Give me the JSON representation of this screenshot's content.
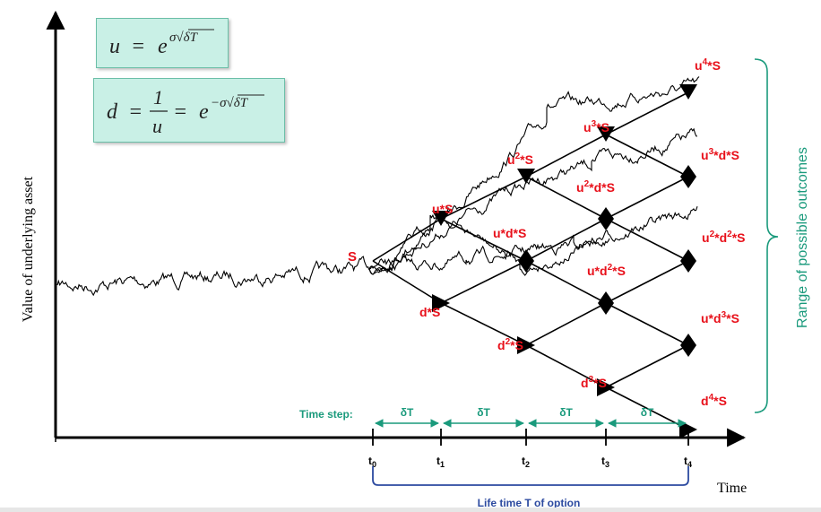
{
  "formulas": {
    "u_lhs": "u",
    "u_eq": "=",
    "u_rhs_base": "e",
    "u_rhs_exp": "σ√δT",
    "d_lhs": "d",
    "d_eq1": "=",
    "d_frac_num": "1",
    "d_frac_den": "u",
    "d_eq2": "=",
    "d_rhs_base": "e",
    "d_rhs_exp": "−σ√δT"
  },
  "axes": {
    "y_label": "Value of underlying asset",
    "x_label": "Time"
  },
  "time_ticks": [
    {
      "base": "t",
      "sub": "0"
    },
    {
      "base": "t",
      "sub": "1"
    },
    {
      "base": "t",
      "sub": "2"
    },
    {
      "base": "t",
      "sub": "3"
    },
    {
      "base": "t",
      "sub": "4"
    }
  ],
  "time_step": {
    "label": "Time step:",
    "interval": "δT"
  },
  "lifetime_label": "Life time T of option",
  "range_label": "Range of possible outcomes",
  "start_label": "S",
  "nodes": [
    {
      "name": "node-u-s",
      "parts": [
        [
          "u",
          ""
        ],
        [
          "*S",
          ""
        ]
      ]
    },
    {
      "name": "node-d-s",
      "parts": [
        [
          "d*S",
          ""
        ]
      ]
    },
    {
      "name": "node-u2-s",
      "parts": [
        [
          "u",
          ""
        ],
        [
          "2",
          "sup"
        ],
        [
          "*S",
          ""
        ]
      ]
    },
    {
      "name": "node-ud-s",
      "parts": [
        [
          "u*d*S",
          ""
        ]
      ]
    },
    {
      "name": "node-d2-s",
      "parts": [
        [
          "d",
          ""
        ],
        [
          "2",
          "sup"
        ],
        [
          "*S",
          ""
        ]
      ]
    },
    {
      "name": "node-u3-s",
      "parts": [
        [
          "u",
          ""
        ],
        [
          "3",
          "sup"
        ],
        [
          "*S",
          ""
        ]
      ]
    },
    {
      "name": "node-u2d-s",
      "parts": [
        [
          "u",
          ""
        ],
        [
          "2",
          "sup"
        ],
        [
          "*d*S",
          ""
        ]
      ]
    },
    {
      "name": "node-ud2-s",
      "parts": [
        [
          "u*d",
          ""
        ],
        [
          "2",
          "sup"
        ],
        [
          "*S",
          ""
        ]
      ]
    },
    {
      "name": "node-d3-s",
      "parts": [
        [
          "d",
          ""
        ],
        [
          "3",
          "sup"
        ],
        [
          "*S",
          ""
        ]
      ]
    },
    {
      "name": "node-u4-s",
      "parts": [
        [
          "u",
          ""
        ],
        [
          "4",
          "sup"
        ],
        [
          "*S",
          ""
        ]
      ]
    },
    {
      "name": "node-u3d-s",
      "parts": [
        [
          "u",
          ""
        ],
        [
          "3",
          "sup"
        ],
        [
          "*d*S",
          ""
        ]
      ]
    },
    {
      "name": "node-u2d2-s",
      "parts": [
        [
          "u",
          ""
        ],
        [
          "2",
          "sup"
        ],
        [
          "*d",
          ""
        ],
        [
          "2",
          "sup"
        ],
        [
          "*S",
          ""
        ]
      ]
    },
    {
      "name": "node-ud3-s",
      "parts": [
        [
          "u*d",
          ""
        ],
        [
          "3",
          "sup"
        ],
        [
          "*S",
          ""
        ]
      ]
    },
    {
      "name": "node-d4-s",
      "parts": [
        [
          "d",
          ""
        ],
        [
          "4",
          "sup"
        ],
        [
          "*S",
          ""
        ]
      ]
    }
  ],
  "colors": {
    "node_label": "#e8101a",
    "teal": "#1a9a7c",
    "lifetime": "#2c4aa0",
    "formula_bg": "#c9f0e6",
    "line": "#000000"
  }
}
